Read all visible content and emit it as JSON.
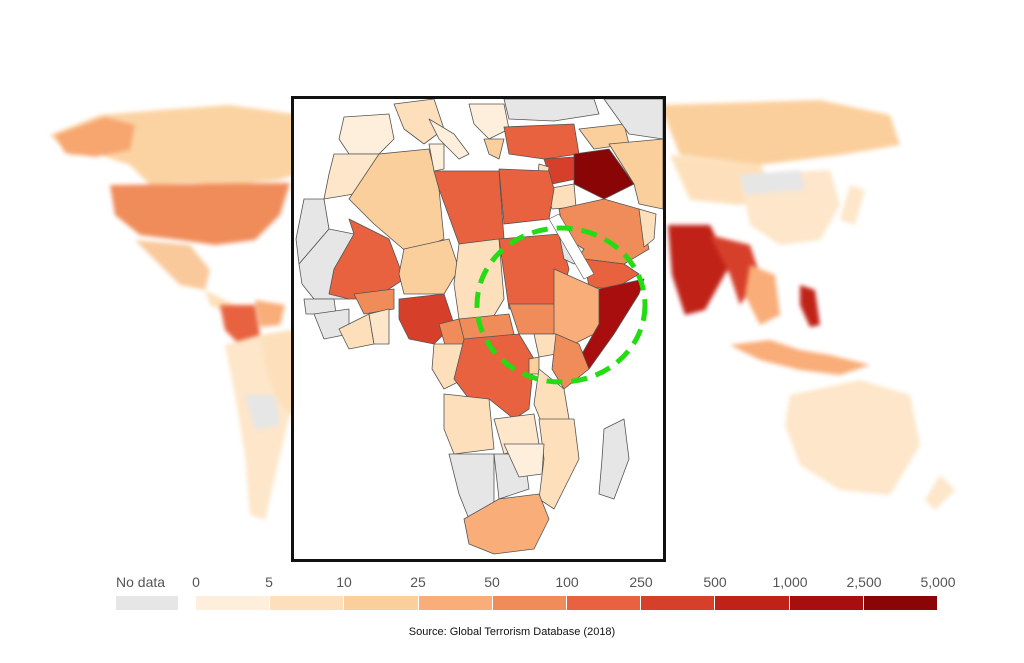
{
  "legend": {
    "no_data_label": "No data",
    "no_data_color": "#e6e6e6",
    "ticks": [
      "0",
      "5",
      "10",
      "25",
      "50",
      "100",
      "250",
      "500",
      "1,000",
      "2,500",
      "5,000"
    ],
    "colors": [
      "#fdefdc",
      "#fde0bb",
      "#fbcf9c",
      "#f9ad78",
      "#f08c5a",
      "#e8623f",
      "#d6402b",
      "#c02217",
      "#a80e0e",
      "#8a0505"
    ]
  },
  "source": "Source: Global Terrorism Database (2018)",
  "highlight": {
    "color": "#22dd11",
    "region": "Horn of Africa / East Africa"
  }
}
